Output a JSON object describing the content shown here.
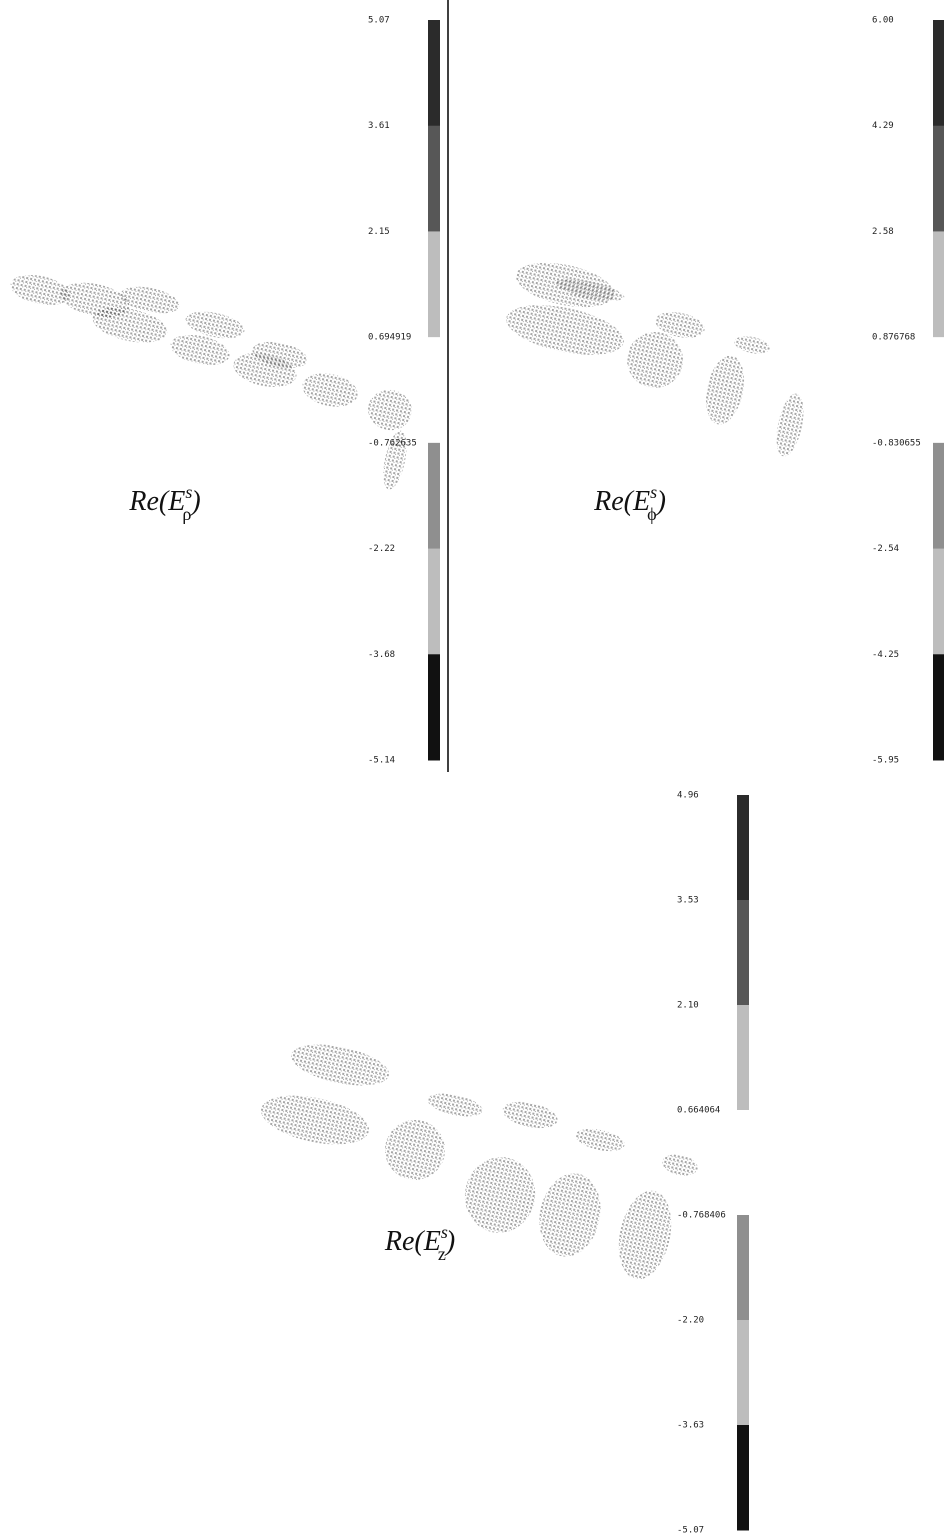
{
  "panels": [
    {
      "label": {
        "base": "Re(E",
        "sup": "s",
        "sub": "ρ",
        "close": ")"
      },
      "colorbar_labels": [
        "5.07",
        "3.61",
        "2.15",
        "0.694919",
        "-0.762635",
        "-2.22",
        "-3.68",
        "-5.14"
      ]
    },
    {
      "label": {
        "base": "Re(E",
        "sup": "s",
        "sub": "ϕ",
        "close": ")"
      },
      "colorbar_labels": [
        "6.00",
        "4.29",
        "2.58",
        "0.876768",
        "-0.830655",
        "-2.54",
        "-4.25",
        "-5.95"
      ]
    },
    {
      "label": {
        "base": "Re(E",
        "sup": "s",
        "sub": "z",
        "close": ")"
      },
      "colorbar_labels": [
        "4.96",
        "3.53",
        "2.10",
        "0.664064",
        "-0.768406",
        "-2.20",
        "-3.63",
        "-5.07"
      ]
    }
  ]
}
